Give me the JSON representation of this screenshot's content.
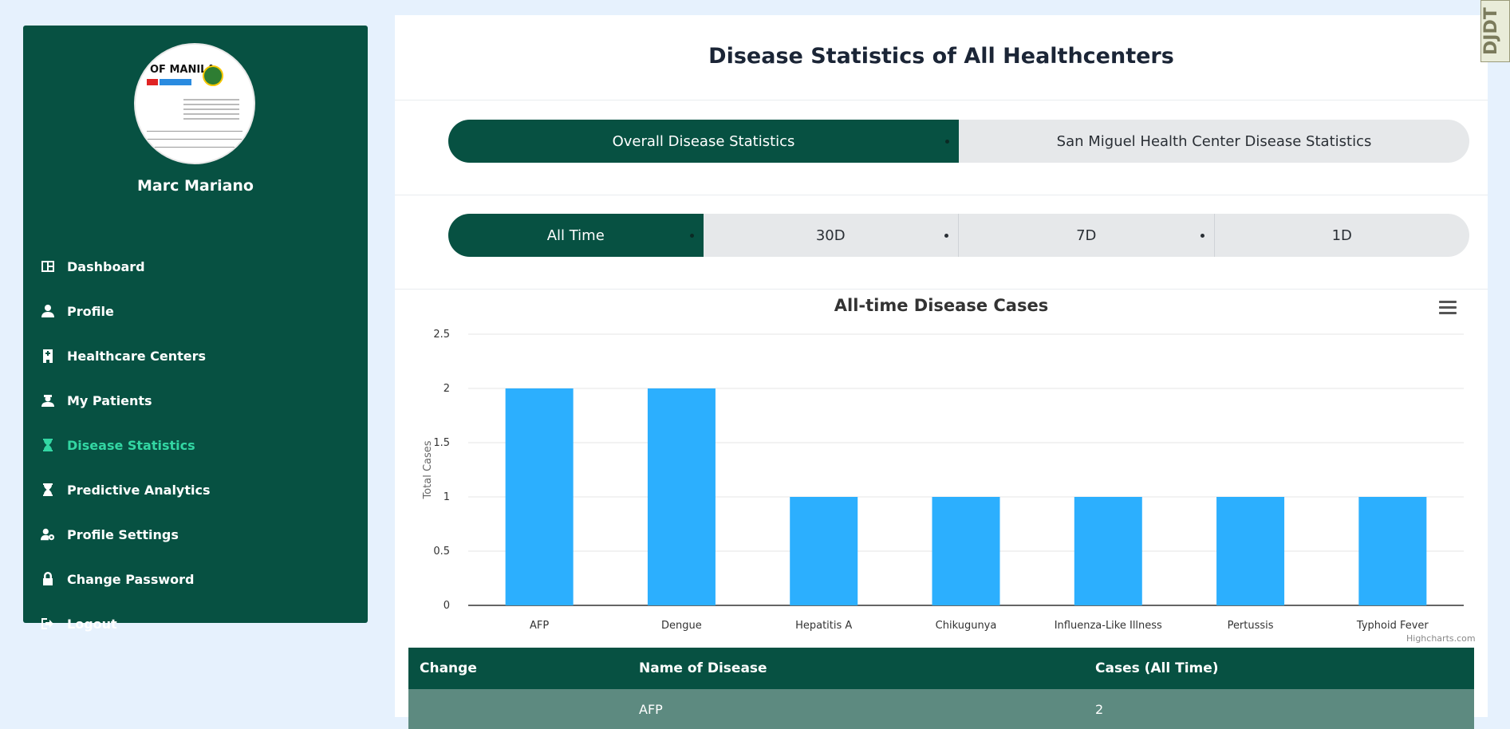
{
  "sidebar": {
    "avatar_text": "OF MANILA",
    "user_name": "Marc Mariano",
    "items": [
      {
        "label": "Dashboard",
        "icon": "dashboard-icon"
      },
      {
        "label": "Profile",
        "icon": "user-icon"
      },
      {
        "label": "Healthcare Centers",
        "icon": "hospital-icon"
      },
      {
        "label": "My Patients",
        "icon": "patient-icon"
      },
      {
        "label": "Disease Statistics",
        "icon": "hourglass-icon",
        "active": true
      },
      {
        "label": "Predictive Analytics",
        "icon": "hourglass-icon"
      },
      {
        "label": "Profile Settings",
        "icon": "user-gear-icon"
      },
      {
        "label": "Change Password",
        "icon": "lock-icon"
      },
      {
        "label": "Logout",
        "icon": "logout-icon"
      }
    ]
  },
  "main": {
    "title": "Disease Statistics of All Healthcenters",
    "scope_tabs": [
      {
        "label": "Overall Disease Statistics",
        "active": true
      },
      {
        "label": "San Miguel Health Center Disease Statistics",
        "active": false
      }
    ],
    "period_tabs": [
      {
        "label": "All Time",
        "active": true
      },
      {
        "label": "30D",
        "active": false
      },
      {
        "label": "7D",
        "active": false
      },
      {
        "label": "1D",
        "active": false
      }
    ],
    "credits": "Highcharts.com"
  },
  "chart_data": {
    "type": "bar",
    "title": "All-time Disease Cases",
    "ylabel": "Total Cases",
    "xlabel": "",
    "categories": [
      "AFP",
      "Dengue",
      "Hepatitis A",
      "Chikugunya",
      "Influenza-Like Illness",
      "Pertussis",
      "Typhoid Fever"
    ],
    "values": [
      2,
      2,
      1,
      1,
      1,
      1,
      1
    ],
    "ylim": [
      0,
      2.5
    ],
    "yticks": [
      "0",
      "0.5",
      "1",
      "1.5",
      "2",
      "2.5"
    ],
    "color": "#2caffe",
    "grid": true
  },
  "table": {
    "headers": [
      "Change",
      "Name of Disease",
      "Cases (All Time)"
    ],
    "rows": [
      [
        "",
        "AFP",
        "2"
      ]
    ]
  },
  "badge": "DJDT",
  "colors": {
    "brand": "#075142",
    "active_nav": "#33d6a3",
    "bar": "#2caffe",
    "background": "#e6f1fd"
  }
}
